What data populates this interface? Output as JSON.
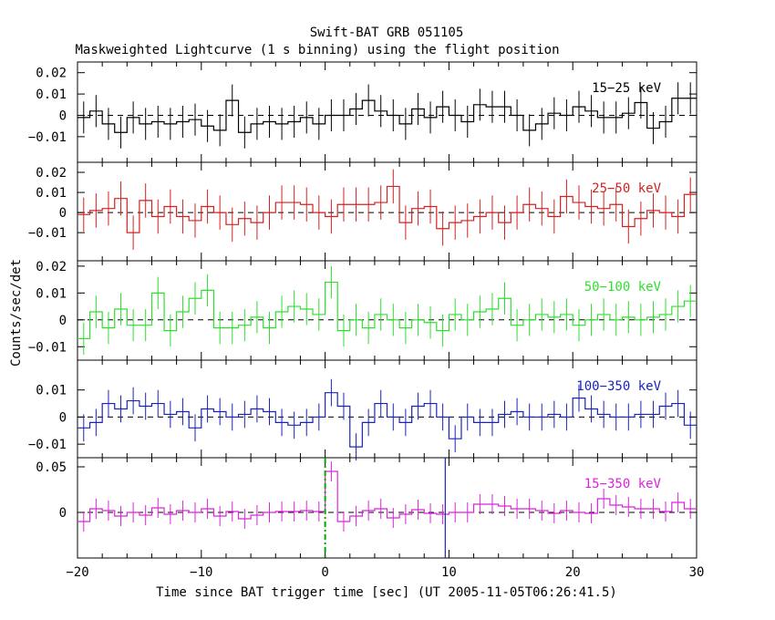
{
  "chart_data": {
    "type": "line",
    "title": "Swift-BAT GRB 051105",
    "subtitle": "Maskweighted Lightcurve (1 s binning) using the flight position",
    "xlabel": "Time since BAT trigger time [sec] (UT 2005-11-05T06:26:41.5)",
    "ylabel": "Counts/sec/det",
    "xlim": [
      -20,
      30
    ],
    "x_ticks": [
      -20,
      -10,
      0,
      10,
      20,
      30
    ],
    "x_tick_labels": [
      "−20",
      "−10",
      "0",
      "10",
      "20",
      "30"
    ],
    "trigger_time": 0,
    "marker_time": 9.7,
    "t0": -20,
    "bin_width": 1,
    "panels": [
      {
        "name": "15-25 keV",
        "label": "15−25 keV",
        "color": "#000000",
        "ylim": [
          -0.022,
          0.025
        ],
        "yticks": [
          -0.01,
          0,
          0.01,
          0.02
        ],
        "ytick_labels": [
          "−0.01",
          "0",
          "0.01",
          "0.02"
        ],
        "error": 0.0075,
        "values": [
          -0.001,
          0.002,
          -0.004,
          -0.008,
          -0.001,
          -0.004,
          -0.003,
          -0.004,
          -0.003,
          -0.002,
          -0.005,
          -0.007,
          0.007,
          -0.008,
          -0.004,
          -0.003,
          -0.004,
          -0.003,
          -0.001,
          -0.004,
          0.0,
          0.0,
          0.003,
          0.007,
          0.002,
          0.0,
          -0.004,
          0.003,
          -0.001,
          0.004,
          0.0,
          -0.003,
          0.005,
          0.004,
          0.004,
          0.0,
          -0.007,
          -0.004,
          0.001,
          0.0,
          0.004,
          0.002,
          -0.001,
          -0.001,
          0.001,
          0.006,
          -0.006,
          -0.003,
          0.008,
          0.008
        ]
      },
      {
        "name": "25-50 keV",
        "label": "25−50 keV",
        "color": "#d62020",
        "ylim": [
          -0.024,
          0.025
        ],
        "yticks": [
          -0.01,
          0,
          0.01,
          0.02
        ],
        "ytick_labels": [
          "−0.01",
          "0",
          "0.01",
          "0.02"
        ],
        "error": 0.0085,
        "values": [
          -0.001,
          0.001,
          0.002,
          0.007,
          -0.01,
          0.006,
          -0.002,
          0.003,
          -0.002,
          -0.004,
          0.003,
          0.0,
          -0.006,
          -0.003,
          -0.005,
          0.0,
          0.005,
          0.005,
          0.004,
          0.0,
          -0.002,
          0.004,
          0.004,
          0.004,
          0.005,
          0.013,
          -0.005,
          0.002,
          0.003,
          -0.008,
          -0.005,
          -0.004,
          -0.002,
          0.0,
          -0.005,
          0.0,
          0.004,
          0.002,
          -0.002,
          0.008,
          0.005,
          0.003,
          0.002,
          0.004,
          -0.007,
          -0.003,
          0.001,
          0.0,
          -0.002,
          0.009
        ]
      },
      {
        "name": "50-100 keV",
        "label": "50−100 keV",
        "color": "#2ee02e",
        "ylim": [
          -0.015,
          0.022
        ],
        "yticks": [
          -0.01,
          0,
          0.01,
          0.02
        ],
        "ytick_labels": [
          "−0.01",
          "0",
          "0.01",
          "0.02"
        ],
        "error": 0.006,
        "values": [
          -0.007,
          0.003,
          -0.003,
          0.004,
          -0.002,
          -0.002,
          0.01,
          -0.004,
          0.003,
          0.008,
          0.011,
          -0.003,
          -0.003,
          -0.002,
          0.001,
          -0.003,
          0.003,
          0.005,
          0.004,
          0.002,
          0.014,
          -0.004,
          0.0,
          -0.003,
          0.002,
          0.0,
          -0.003,
          0.0,
          -0.001,
          -0.004,
          0.002,
          0.0,
          0.003,
          0.004,
          0.008,
          -0.002,
          0.0,
          0.002,
          0.001,
          0.002,
          -0.002,
          0.0,
          0.002,
          0.0,
          0.001,
          0.0,
          0.001,
          0.002,
          0.005,
          0.007
        ]
      },
      {
        "name": "100-350 keV",
        "label": "100−350 keV",
        "color": "#1a24b8",
        "ylim": [
          -0.015,
          0.021
        ],
        "yticks": [
          -0.01,
          0,
          0.01
        ],
        "ytick_labels": [
          "−0.01",
          "0",
          "0.01"
        ],
        "error": 0.005,
        "values": [
          -0.004,
          -0.002,
          0.005,
          0.003,
          0.006,
          0.004,
          0.005,
          0.001,
          0.002,
          -0.004,
          0.003,
          0.002,
          0.0,
          0.001,
          0.003,
          0.002,
          -0.002,
          -0.003,
          -0.002,
          0.0,
          0.009,
          0.004,
          -0.011,
          -0.002,
          0.005,
          0.0,
          -0.002,
          0.004,
          0.005,
          0.0,
          -0.008,
          0.0,
          -0.002,
          -0.002,
          0.001,
          0.002,
          0.0,
          0.0,
          0.001,
          0.0,
          0.007,
          0.003,
          0.001,
          0.0,
          0.0,
          0.001,
          0.001,
          0.004,
          0.005,
          -0.003
        ]
      },
      {
        "name": "15-350 keV",
        "label": "15−350 keV",
        "color": "#dd22dd",
        "ylim": [
          -0.05,
          0.06
        ],
        "yticks": [
          0,
          0.05
        ],
        "ytick_labels": [
          "0",
          "0.05"
        ],
        "error": 0.011,
        "values": [
          -0.01,
          0.004,
          0.002,
          -0.004,
          0.0,
          -0.003,
          0.005,
          -0.002,
          0.002,
          0.0,
          0.004,
          -0.004,
          0.001,
          -0.007,
          -0.003,
          0.0,
          0.001,
          0.001,
          0.002,
          0.001,
          0.045,
          -0.01,
          -0.004,
          0.002,
          0.004,
          -0.006,
          -0.002,
          0.003,
          -0.001,
          -0.002,
          0.0,
          0.0,
          0.009,
          0.009,
          0.007,
          0.004,
          0.004,
          0.002,
          -0.001,
          0.002,
          0.0,
          -0.001,
          0.015,
          0.008,
          0.006,
          0.004,
          0.004,
          0.001,
          0.011,
          0.004
        ]
      }
    ]
  }
}
